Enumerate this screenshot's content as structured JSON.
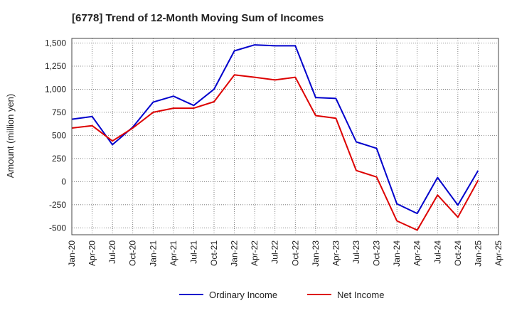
{
  "chart_data": {
    "type": "line",
    "title": "[6778]  Trend of 12-Month Moving Sum of Incomes",
    "xlabel": "",
    "ylabel": "Amount (million yen)",
    "ylim": [
      -575,
      1550
    ],
    "yticks": [
      -500,
      -250,
      0,
      250,
      500,
      750,
      1000,
      1250,
      1500
    ],
    "ytick_labels": [
      "-500",
      "-250",
      "0",
      "250",
      "500",
      "750",
      "1,000",
      "1,250",
      "1,500"
    ],
    "x_tick_labels": [
      "Jan-20",
      "Apr-20",
      "Jul-20",
      "Oct-20",
      "Jan-21",
      "Apr-21",
      "Jul-21",
      "Oct-21",
      "Jan-22",
      "Apr-22",
      "Jul-22",
      "Oct-22",
      "Jan-23",
      "Apr-23",
      "Jul-23",
      "Oct-23",
      "Jan-24",
      "Apr-24",
      "Jul-24",
      "Oct-24",
      "Jan-25",
      "Apr-25"
    ],
    "grid": true,
    "legend_position": "bottom",
    "series": [
      {
        "name": "Ordinary Income",
        "color": "#0000cc",
        "values": [
          675,
          705,
          400,
          590,
          860,
          925,
          825,
          1000,
          1415,
          1480,
          1470,
          1470,
          910,
          900,
          430,
          360,
          -240,
          -345,
          45,
          -255,
          120
        ]
      },
      {
        "name": "Net Income",
        "color": "#dd0000",
        "values": [
          580,
          605,
          440,
          580,
          750,
          795,
          795,
          865,
          1155,
          1130,
          1100,
          1130,
          715,
          685,
          120,
          50,
          -425,
          -525,
          -145,
          -385,
          15
        ]
      }
    ]
  }
}
